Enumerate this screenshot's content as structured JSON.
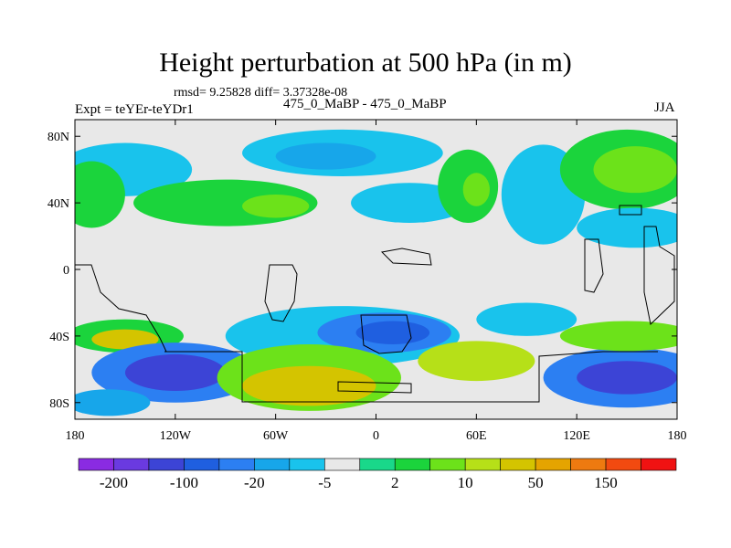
{
  "chart_data": {
    "type": "heatmap",
    "title": "Height perturbation at 500 hPa (in m)",
    "subtitle_stats": "rmsd= 9.25828  diff= 3.37328e-08",
    "label_left": "Expt = teYEr-teYDr1",
    "label_center": "475_0_MaBP - 475_0_MaBP",
    "label_right": "JJA",
    "x_ticks": [
      {
        "value": -180,
        "label": "180"
      },
      {
        "value": -120,
        "label": "120W"
      },
      {
        "value": -60,
        "label": "60W"
      },
      {
        "value": 0,
        "label": "0"
      },
      {
        "value": 60,
        "label": "60E"
      },
      {
        "value": 120,
        "label": "120E"
      },
      {
        "value": 180,
        "label": "180"
      }
    ],
    "y_ticks": [
      {
        "value": 80,
        "label": "80N"
      },
      {
        "value": 40,
        "label": "40N"
      },
      {
        "value": 0,
        "label": "0"
      },
      {
        "value": -40,
        "label": "40S"
      },
      {
        "value": -80,
        "label": "80S"
      }
    ],
    "xlim": [
      -180,
      180
    ],
    "ylim": [
      -90,
      90
    ],
    "colorbar": {
      "levels_labeled": [
        "-200",
        "-100",
        "-20",
        "-5",
        "2",
        "10",
        "50",
        "150"
      ],
      "colors": [
        "#8a2be2",
        "#6a3ae0",
        "#3c44d6",
        "#1f5fe0",
        "#2c7ff2",
        "#17a6ea",
        "#19c3ec",
        "#e8e8e8",
        "#19d88a",
        "#1bd43c",
        "#6ce21a",
        "#b6e018",
        "#d4c400",
        "#e5a400",
        "#ee7a10",
        "#f24a10",
        "#f01212"
      ]
    },
    "fields": [
      {
        "kind": "neg_light",
        "color": "#19c3ec",
        "lon": -150,
        "lat": 60,
        "rx": 40,
        "ry": 16
      },
      {
        "kind": "pos",
        "color": "#1bd43c",
        "lon": -170,
        "lat": 45,
        "rx": 20,
        "ry": 20
      },
      {
        "kind": "pos",
        "color": "#1bd43c",
        "lon": -90,
        "lat": 40,
        "rx": 55,
        "ry": 14
      },
      {
        "kind": "pos",
        "color": "#6ce21a",
        "lon": -60,
        "lat": 38,
        "rx": 20,
        "ry": 7
      },
      {
        "kind": "neg_light",
        "color": "#19c3ec",
        "lon": -20,
        "lat": 70,
        "rx": 60,
        "ry": 14
      },
      {
        "kind": "neg",
        "color": "#17a6ea",
        "lon": -30,
        "lat": 68,
        "rx": 30,
        "ry": 8
      },
      {
        "kind": "neg_light",
        "color": "#19c3ec",
        "lon": 20,
        "lat": 40,
        "rx": 35,
        "ry": 12
      },
      {
        "kind": "pos",
        "color": "#1bd43c",
        "lon": 55,
        "lat": 50,
        "rx": 18,
        "ry": 22
      },
      {
        "kind": "pos",
        "color": "#6ce21a",
        "lon": 60,
        "lat": 48,
        "rx": 8,
        "ry": 10
      },
      {
        "kind": "neg_light",
        "color": "#19c3ec",
        "lon": 100,
        "lat": 45,
        "rx": 25,
        "ry": 30
      },
      {
        "kind": "pos",
        "color": "#1bd43c",
        "lon": 150,
        "lat": 60,
        "rx": 40,
        "ry": 24
      },
      {
        "kind": "pos",
        "color": "#6ce21a",
        "lon": 155,
        "lat": 60,
        "rx": 25,
        "ry": 14
      },
      {
        "kind": "neg_light",
        "color": "#19c3ec",
        "lon": 155,
        "lat": 25,
        "rx": 35,
        "ry": 12
      },
      {
        "kind": "neg_light",
        "color": "#19c3ec",
        "lon": -20,
        "lat": -40,
        "rx": 70,
        "ry": 18
      },
      {
        "kind": "neg",
        "color": "#2c7ff2",
        "lon": 5,
        "lat": -38,
        "rx": 40,
        "ry": 12
      },
      {
        "kind": "neg",
        "color": "#1f5fe0",
        "lon": 10,
        "lat": -38,
        "rx": 22,
        "ry": 7
      },
      {
        "kind": "neg_light",
        "color": "#19c3ec",
        "lon": 90,
        "lat": -30,
        "rx": 30,
        "ry": 10
      },
      {
        "kind": "pos",
        "color": "#1bd43c",
        "lon": -150,
        "lat": -40,
        "rx": 35,
        "ry": 10
      },
      {
        "kind": "pos",
        "color": "#d4c400",
        "lon": -150,
        "lat": -42,
        "rx": 20,
        "ry": 6
      },
      {
        "kind": "neg",
        "color": "#2c7ff2",
        "lon": -120,
        "lat": -62,
        "rx": 50,
        "ry": 18
      },
      {
        "kind": "neg",
        "color": "#3c44d6",
        "lon": -120,
        "lat": -62,
        "rx": 30,
        "ry": 11
      },
      {
        "kind": "pos",
        "color": "#6ce21a",
        "lon": -40,
        "lat": -65,
        "rx": 55,
        "ry": 20
      },
      {
        "kind": "pos",
        "color": "#d4c400",
        "lon": -40,
        "lat": -70,
        "rx": 40,
        "ry": 12
      },
      {
        "kind": "pos",
        "color": "#b6e018",
        "lon": 60,
        "lat": -55,
        "rx": 35,
        "ry": 12
      },
      {
        "kind": "neg",
        "color": "#2c7ff2",
        "lon": 150,
        "lat": -65,
        "rx": 50,
        "ry": 18
      },
      {
        "kind": "neg",
        "color": "#3c44d6",
        "lon": 150,
        "lat": -65,
        "rx": 30,
        "ry": 10
      },
      {
        "kind": "pos",
        "color": "#6ce21a",
        "lon": 150,
        "lat": -40,
        "rx": 40,
        "ry": 9
      },
      {
        "kind": "neg",
        "color": "#17a6ea",
        "lon": -160,
        "lat": -80,
        "rx": 25,
        "ry": 8
      }
    ]
  }
}
